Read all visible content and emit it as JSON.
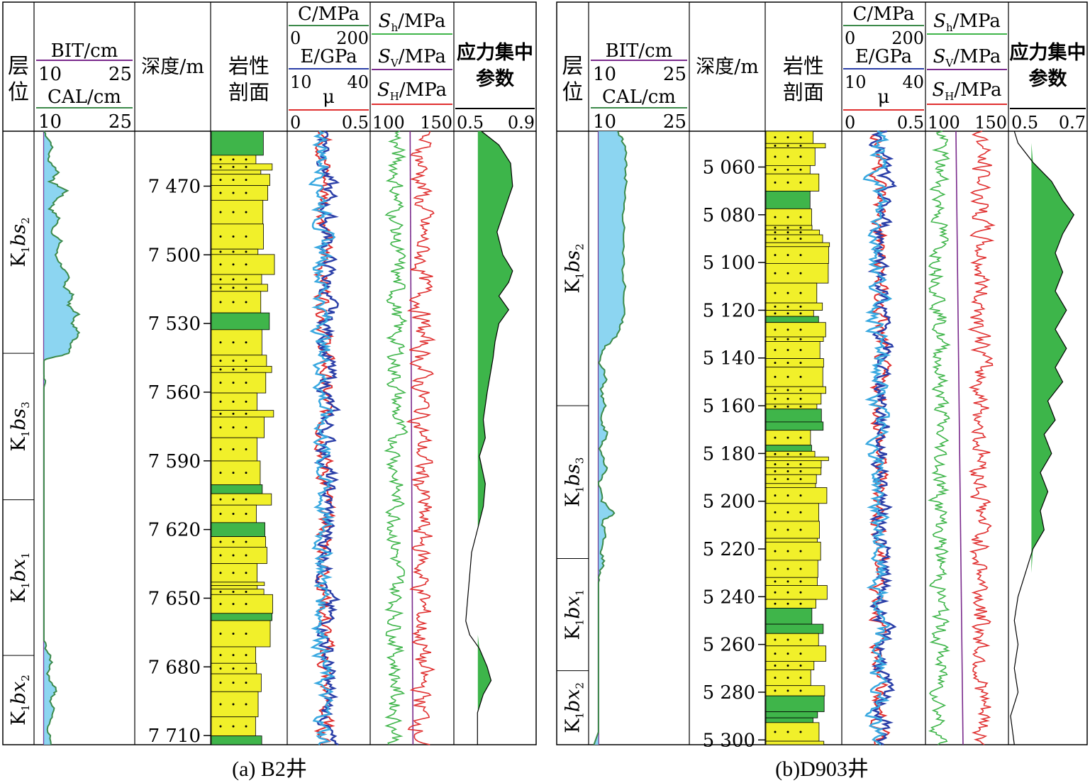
{
  "chart_data": [
    {
      "type": "well-log",
      "caption": "(a) B2井",
      "headers": {
        "layer": "层位",
        "bit": {
          "label": "BIT/cm",
          "min": "10",
          "max": "25",
          "color": "#7a2a8c"
        },
        "cal": {
          "label": "CAL/cm",
          "min": "10",
          "max": "25",
          "color": "#3c8a4a"
        },
        "depth": "深度/m",
        "lith": "岩性剖面",
        "c": {
          "label": "C/MPa",
          "min": "0",
          "max": "200",
          "color": "#39a8e0"
        },
        "e": {
          "label": "E/GPa",
          "min": "10",
          "max": "40",
          "color": "#2b3fa8"
        },
        "mu": {
          "label": "μ",
          "min": "0",
          "max": "0.5",
          "color": "#e03030"
        },
        "sh": {
          "label": "Sh/MPa",
          "color": "#3fb54a"
        },
        "sv": {
          "label": "Sv/MPa",
          "color": "#7a2a8c"
        },
        "sH": {
          "label": "SH/MPa",
          "color": "#e03030"
        },
        "stress_range": {
          "min": "100",
          "max": "150"
        },
        "param": {
          "label": "应力集中参数",
          "min": "0.5",
          "max": "0.9"
        }
      },
      "depth_range": [
        7446,
        7714
      ],
      "depth_ticks": [
        "7 470",
        "7 500",
        "7 530",
        "7 560",
        "7 590",
        "7 620",
        "7 650",
        "7 680",
        "7 710"
      ],
      "depth_values": [
        7470,
        7500,
        7530,
        7560,
        7590,
        7620,
        7650,
        7680,
        7710
      ],
      "zones": [
        {
          "label": "K1bs2",
          "top": 7446,
          "bottom": 7543
        },
        {
          "label": "K1bs3",
          "top": 7543,
          "bottom": 7607
        },
        {
          "label": "K1bx1",
          "top": 7607,
          "bottom": 7675
        },
        {
          "label": "K1bx2",
          "top": 7675,
          "bottom": 7714
        }
      ],
      "cal_profile": [
        [
          7446,
          11.2
        ],
        [
          7452,
          12.5
        ],
        [
          7458,
          11.8
        ],
        [
          7464,
          13.5
        ],
        [
          7468,
          12.2
        ],
        [
          7472,
          14.8
        ],
        [
          7476,
          13.1
        ],
        [
          7480,
          12.2
        ],
        [
          7484,
          13.6
        ],
        [
          7490,
          12.4
        ],
        [
          7494,
          13.8
        ],
        [
          7500,
          13.0
        ],
        [
          7506,
          14.2
        ],
        [
          7510,
          15.0
        ],
        [
          7514,
          14.4
        ],
        [
          7518,
          15.8
        ],
        [
          7522,
          14.9
        ],
        [
          7526,
          16.5
        ],
        [
          7530,
          15.4
        ],
        [
          7534,
          16.9
        ],
        [
          7538,
          15.6
        ],
        [
          7543,
          15.2
        ],
        [
          7546,
          11.2
        ],
        [
          7550,
          10.9
        ],
        [
          7556,
          11.3
        ],
        [
          7562,
          10.8
        ],
        [
          7570,
          11.0
        ],
        [
          7580,
          10.6
        ],
        [
          7600,
          10.5
        ],
        [
          7630,
          10.5
        ],
        [
          7650,
          10.6
        ],
        [
          7665,
          10.7
        ],
        [
          7672,
          11.6
        ],
        [
          7678,
          12.4
        ],
        [
          7684,
          11.8
        ],
        [
          7690,
          13.2
        ],
        [
          7694,
          12.2
        ],
        [
          7700,
          12.8
        ],
        [
          7706,
          11.9
        ],
        [
          7714,
          12.3
        ]
      ],
      "param_profile": [
        [
          7446,
          0.63
        ],
        [
          7452,
          0.72
        ],
        [
          7460,
          0.78
        ],
        [
          7470,
          0.79
        ],
        [
          7480,
          0.75
        ],
        [
          7490,
          0.71
        ],
        [
          7500,
          0.74
        ],
        [
          7507,
          0.79
        ],
        [
          7512,
          0.77
        ],
        [
          7518,
          0.72
        ],
        [
          7524,
          0.77
        ],
        [
          7530,
          0.72
        ],
        [
          7538,
          0.7
        ],
        [
          7545,
          0.69
        ],
        [
          7560,
          0.66
        ],
        [
          7572,
          0.64
        ],
        [
          7580,
          0.65
        ],
        [
          7588,
          0.62
        ],
        [
          7600,
          0.65
        ],
        [
          7610,
          0.64
        ],
        [
          7620,
          0.61
        ],
        [
          7630,
          0.58
        ],
        [
          7640,
          0.57
        ],
        [
          7650,
          0.56
        ],
        [
          7660,
          0.55
        ],
        [
          7666,
          0.57
        ],
        [
          7672,
          0.62
        ],
        [
          7680,
          0.66
        ],
        [
          7686,
          0.68
        ],
        [
          7692,
          0.64
        ],
        [
          7700,
          0.61
        ],
        [
          7714,
          0.61
        ]
      ],
      "sv_line": [
        [
          7446,
          123.8
        ],
        [
          7714,
          125.6
        ]
      ],
      "sh_mean": 115.0,
      "sH_mean": 131.0,
      "c_mean": 95.0,
      "e_mean": 25.0,
      "mu_mean": 0.25
    },
    {
      "type": "well-log",
      "caption": "(b)D903井",
      "headers": {
        "layer": "层位",
        "bit": {
          "label": "BIT/cm",
          "min": "10",
          "max": "25",
          "color": "#7a2a8c"
        },
        "cal": {
          "label": "CAL/cm",
          "min": "10",
          "max": "25",
          "color": "#3c8a4a"
        },
        "depth": "深度/m",
        "lith": "岩性剖面",
        "c": {
          "label": "C/MPa",
          "min": "0",
          "max": "200",
          "color": "#39a8e0"
        },
        "e": {
          "label": "E/GPa",
          "min": "10",
          "max": "40",
          "color": "#2b3fa8"
        },
        "mu": {
          "label": "μ",
          "min": "0",
          "max": "0.5",
          "color": "#e03030"
        },
        "sh": {
          "label": "Sh/MPa",
          "color": "#3fb54a"
        },
        "sv": {
          "label": "Sv/MPa",
          "color": "#7a2a8c"
        },
        "sH": {
          "label": "SH/MPa",
          "color": "#e03030"
        },
        "stress_range": {
          "min": "100",
          "max": "150"
        },
        "param": {
          "label": "应力集中参数",
          "min": "0.5",
          "max": "0.7"
        }
      },
      "depth_range": [
        5045,
        5302
      ],
      "depth_ticks": [
        "5 060",
        "5 080",
        "5 100",
        "5 120",
        "5 140",
        "5 160",
        "5 180",
        "5 200",
        "5 220",
        "5 240",
        "5 260",
        "5 280",
        "5 300"
      ],
      "depth_values": [
        5060,
        5080,
        5100,
        5120,
        5140,
        5160,
        5180,
        5200,
        5220,
        5240,
        5260,
        5280,
        5300
      ],
      "zones": [
        {
          "label": "K1bs2",
          "top": 5045,
          "bottom": 5160
        },
        {
          "label": "K1bs3",
          "top": 5160,
          "bottom": 5224
        },
        {
          "label": "K1bx1",
          "top": 5224,
          "bottom": 5271
        },
        {
          "label": "K1bx2",
          "top": 5271,
          "bottom": 5302
        }
      ],
      "cal_profile": [
        [
          5045,
          14.0
        ],
        [
          5050,
          15.2
        ],
        [
          5058,
          15.6
        ],
        [
          5066,
          15.4
        ],
        [
          5080,
          15.1
        ],
        [
          5096,
          15.0
        ],
        [
          5110,
          15.2
        ],
        [
          5124,
          15.0
        ],
        [
          5130,
          14.2
        ],
        [
          5136,
          12.0
        ],
        [
          5142,
          11.5
        ],
        [
          5148,
          12.4
        ],
        [
          5154,
          11.6
        ],
        [
          5160,
          12.2
        ],
        [
          5166,
          11.4
        ],
        [
          5172,
          12.6
        ],
        [
          5178,
          11.3
        ],
        [
          5186,
          12.5
        ],
        [
          5192,
          11.4
        ],
        [
          5200,
          11.8
        ],
        [
          5205,
          13.8
        ],
        [
          5208,
          11.8
        ],
        [
          5214,
          12.2
        ],
        [
          5220,
          11.6
        ],
        [
          5226,
          12.0
        ],
        [
          5232,
          11.2
        ],
        [
          5238,
          10.8
        ],
        [
          5250,
          10.6
        ],
        [
          5270,
          10.5
        ],
        [
          5302,
          10.5
        ]
      ],
      "param_profile": [
        [
          5045,
          0.51
        ],
        [
          5050,
          0.52
        ],
        [
          5058,
          0.56
        ],
        [
          5066,
          0.61
        ],
        [
          5074,
          0.64
        ],
        [
          5080,
          0.67
        ],
        [
          5088,
          0.64
        ],
        [
          5096,
          0.62
        ],
        [
          5104,
          0.64
        ],
        [
          5112,
          0.62
        ],
        [
          5120,
          0.65
        ],
        [
          5128,
          0.62
        ],
        [
          5136,
          0.65
        ],
        [
          5144,
          0.62
        ],
        [
          5150,
          0.64
        ],
        [
          5158,
          0.6
        ],
        [
          5166,
          0.62
        ],
        [
          5172,
          0.59
        ],
        [
          5180,
          0.61
        ],
        [
          5188,
          0.58
        ],
        [
          5196,
          0.6
        ],
        [
          5204,
          0.58
        ],
        [
          5212,
          0.59
        ],
        [
          5220,
          0.56
        ],
        [
          5230,
          0.54
        ],
        [
          5240,
          0.52
        ],
        [
          5250,
          0.51
        ],
        [
          5260,
          0.52
        ],
        [
          5270,
          0.51
        ],
        [
          5280,
          0.52
        ],
        [
          5290,
          0.5
        ],
        [
          5302,
          0.51
        ]
      ],
      "sv_line": [
        [
          5045,
          118.0
        ],
        [
          5302,
          122.5
        ]
      ],
      "sh_mean": 108.0,
      "sH_mean": 134.0,
      "c_mean": 95.0,
      "e_mean": 25.0,
      "mu_mean": 0.25
    }
  ]
}
